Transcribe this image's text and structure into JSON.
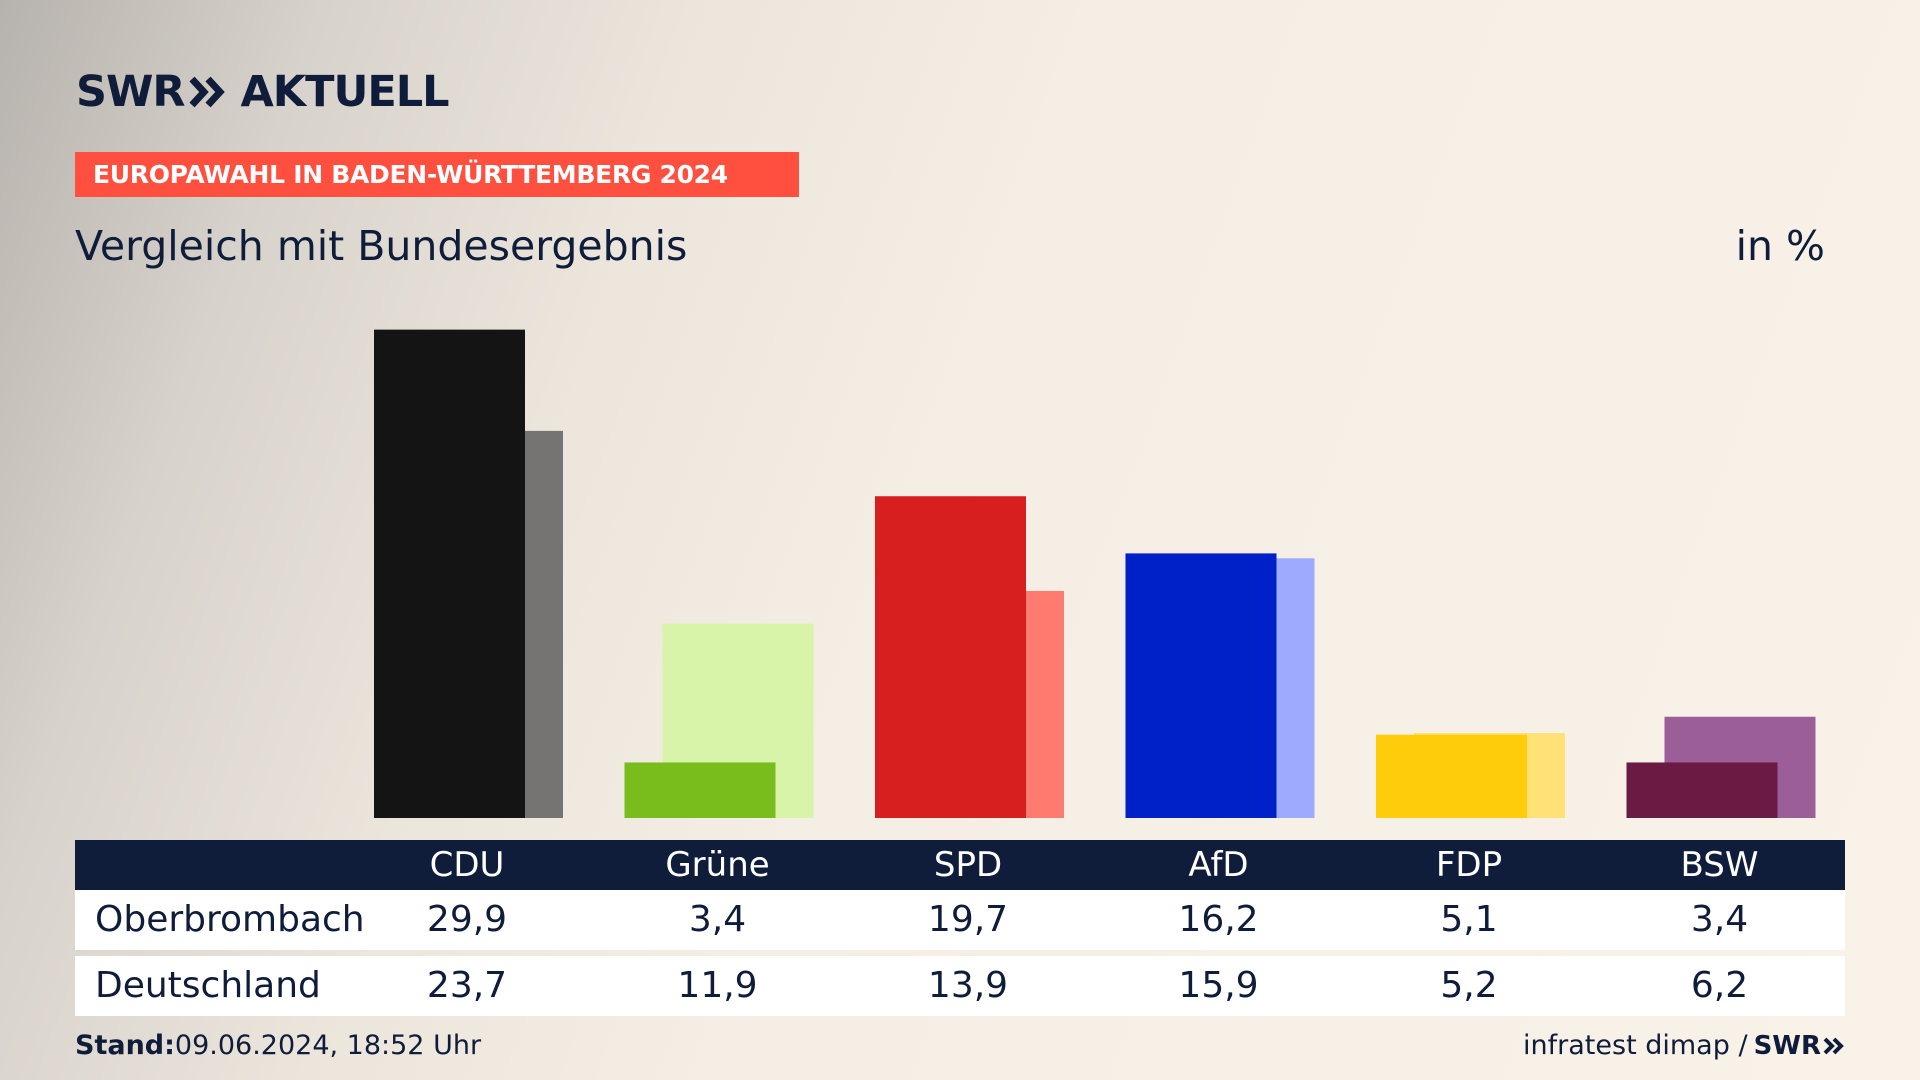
{
  "brand": {
    "logo_left": "SWR",
    "logo_right": "AKTUELL",
    "small_logo": "SWR"
  },
  "header": {
    "badge": "EUROPAWAHL IN BADEN-WÜRTTEMBERG 2024",
    "title": "Vergleich mit Bundesergebnis",
    "unit": "in %"
  },
  "footer": {
    "stand_label": "Stand:",
    "stand_value": "09.06.2024, 18:52 Uhr",
    "source": "infratest dimap /"
  },
  "colors": {
    "navy": "#0f1d3a",
    "badge": "#ff4f3e"
  },
  "chart_data": {
    "type": "bar",
    "categories": [
      "CDU",
      "Grüne",
      "SPD",
      "AfD",
      "FDP",
      "BSW"
    ],
    "series": [
      {
        "name": "Oberbrombach",
        "values": [
          29.9,
          3.4,
          19.7,
          16.2,
          5.1,
          3.4
        ]
      },
      {
        "name": "Deutschland",
        "values": [
          23.7,
          11.9,
          13.9,
          15.9,
          5.2,
          6.2
        ]
      }
    ],
    "value_labels": [
      [
        "29,9",
        "3,4",
        "19,7",
        "16,2",
        "5,1",
        "3,4"
      ],
      [
        "23,7",
        "11,9",
        "13,9",
        "15,9",
        "5,2",
        "6,2"
      ]
    ],
    "colors_local": [
      "#141414",
      "#79bd1d",
      "#d81f20",
      "#0021c8",
      "#ffcc0c",
      "#6a1a43"
    ],
    "colors_national": [
      "#757473",
      "#d7f4a8",
      "#ff7b70",
      "#9dabff",
      "#ffe177",
      "#9c5e99"
    ],
    "ylim": [
      0,
      30
    ]
  }
}
